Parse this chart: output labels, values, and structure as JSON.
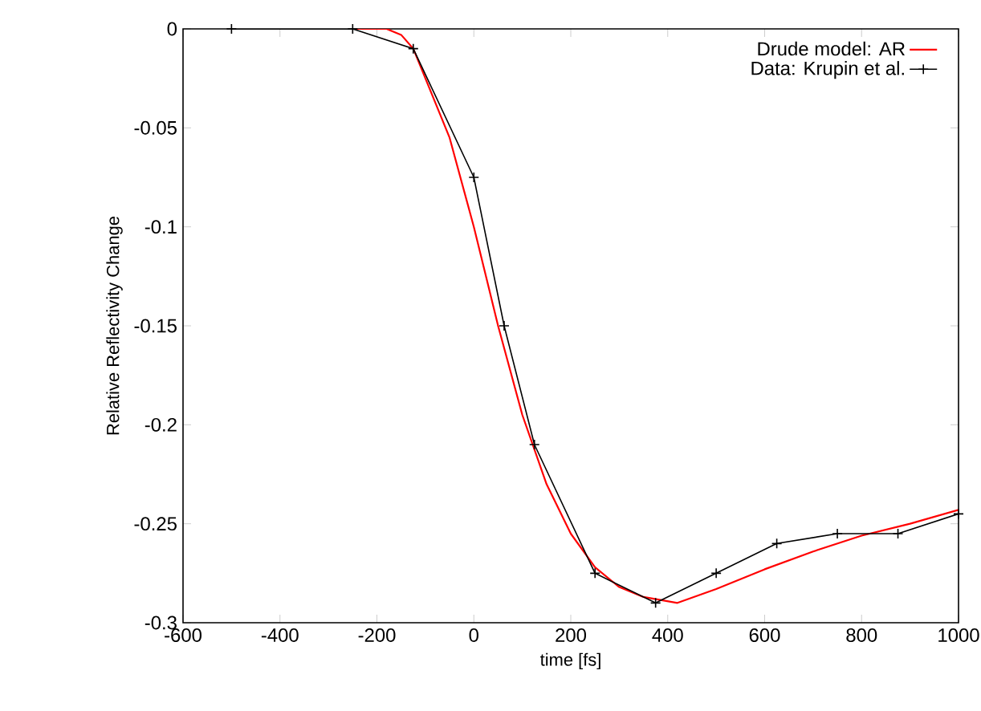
{
  "chart_data": {
    "type": "line",
    "xlabel": "time [fs]",
    "ylabel": "Relative Reflectivity Change",
    "xlim": [
      -600,
      1000
    ],
    "ylim": [
      -0.3,
      0
    ],
    "xticks": [
      -600,
      -400,
      -200,
      0,
      200,
      400,
      600,
      800,
      1000
    ],
    "yticks": [
      -0.3,
      -0.25,
      -0.2,
      -0.15,
      -0.1,
      -0.05,
      0
    ],
    "legend": "top right",
    "series": [
      {
        "name": "Drude model: AR",
        "color": "#ff0000",
        "marker": "none",
        "x": [
          -250,
          -180,
          -150,
          -125,
          -100,
          -50,
          0,
          25,
          50,
          100,
          150,
          200,
          250,
          300,
          350,
          420,
          500,
          600,
          700,
          800,
          900,
          1000
        ],
        "values": [
          0,
          0,
          -0.003,
          -0.01,
          -0.025,
          -0.055,
          -0.1,
          -0.125,
          -0.15,
          -0.195,
          -0.23,
          -0.255,
          -0.272,
          -0.282,
          -0.287,
          -0.29,
          -0.283,
          -0.273,
          -0.264,
          -0.256,
          -0.25,
          -0.243
        ]
      },
      {
        "name": "Data: Krupin et al.",
        "color": "#000000",
        "marker": "cross",
        "x": [
          -500,
          -250,
          -125,
          0,
          62.5,
          125,
          250,
          375,
          500,
          625,
          750,
          875,
          1000
        ],
        "values": [
          0,
          0,
          -0.01,
          -0.075,
          -0.15,
          -0.21,
          -0.275,
          -0.29,
          -0.275,
          -0.26,
          -0.255,
          -0.255,
          -0.245
        ]
      }
    ]
  }
}
